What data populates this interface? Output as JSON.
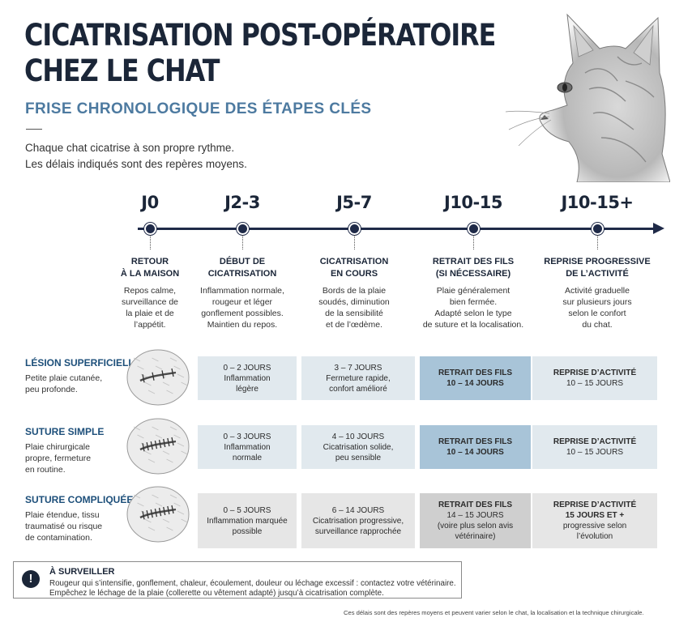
{
  "header": {
    "title_line1": "CICATRISATION POST-OPÉRATOIRE",
    "title_line2": "CHEZ LE CHAT",
    "subtitle": "FRISE CHRONOLOGIQUE DES ÉTAPES CLÉS",
    "intro_line1": "Chaque chat cicatrise à son propre rythme.",
    "intro_line2": "Les délais indiqués sont des repères moyens."
  },
  "timeline": [
    {
      "label": "J0",
      "title1": "RETOUR",
      "title2": "À LA MAISON",
      "desc": [
        "Repos calme,",
        "surveillance de",
        "la plaie et de",
        "l’appétit."
      ]
    },
    {
      "label": "J2-3",
      "title1": "DÉBUT DE",
      "title2": "CICATRISATION",
      "desc": [
        "Inflammation normale,",
        "rougeur et léger",
        "gonflement possibles.",
        "Maintien du repos."
      ]
    },
    {
      "label": "J5-7",
      "title1": "CICATRISATION",
      "title2": "EN COURS",
      "desc": [
        "Bords de la plaie",
        "soudés, diminution",
        "de la sensibilité",
        "et de l’œdème."
      ]
    },
    {
      "label": "J10-15",
      "title1": "RETRAIT DES FILS",
      "title2": "(SI NÉCESSAIRE)",
      "desc": [
        "Plaie généralement",
        "bien fermée.",
        "Adapté selon le type",
        "de suture et la localisation."
      ]
    },
    {
      "label": "J10-15+",
      "title1": "REPRISE PROGRESSIVE",
      "title2": "DE L’ACTIVITÉ",
      "desc": [
        "Activité graduelle",
        "sur plusieurs jours",
        "selon le confort",
        "du chat."
      ]
    }
  ],
  "rows": [
    {
      "title": "LÉSION SUPERFICIELLE",
      "desc": [
        "Petite plaie cutanée,",
        "peu profonde."
      ],
      "cells": [
        {
          "lines": [
            "0 – 2 JOURS",
            "Inflammation",
            "légère"
          ]
        },
        {
          "lines": [
            "3 – 7 JOURS",
            "Fermeture rapide,",
            "confort amélioré"
          ]
        },
        {
          "lines": [
            "RETRAIT DES FILS",
            "10 – 14 JOURS"
          ]
        },
        {
          "lines": [
            "REPRISE D’ACTIVITÉ",
            "10 – 15 JOURS"
          ]
        }
      ]
    },
    {
      "title": "SUTURE SIMPLE",
      "desc": [
        "Plaie chirurgicale",
        "propre, fermeture",
        "en routine."
      ],
      "cells": [
        {
          "lines": [
            "0 – 3 JOURS",
            "Inflammation",
            "normale"
          ]
        },
        {
          "lines": [
            "4 – 10 JOURS",
            "Cicatrisation solide,",
            "peu sensible"
          ]
        },
        {
          "lines": [
            "RETRAIT DES FILS",
            "10 – 14 JOURS"
          ]
        },
        {
          "lines": [
            "REPRISE D’ACTIVITÉ",
            "10 – 15 JOURS"
          ]
        }
      ]
    },
    {
      "title": "SUTURE COMPLIQUÉE",
      "desc": [
        "Plaie étendue, tissu",
        "traumatisé ou risque",
        "de contamination."
      ],
      "cells": [
        {
          "lines": [
            "0 – 5 JOURS",
            "Inflammation marquée",
            "possible"
          ]
        },
        {
          "lines": [
            "6 – 14 JOURS",
            "Cicatrisation progressive,",
            "surveillance rapprochée"
          ]
        },
        {
          "lines": [
            "RETRAIT DES FILS",
            "14 – 15 JOURS",
            "(voire plus selon avis",
            "vétérinaire)"
          ]
        },
        {
          "lines": [
            "REPRISE D’ACTIVITÉ",
            "15 JOURS ET +",
            "progressive selon",
            "l’évolution"
          ]
        }
      ]
    }
  ],
  "alert": {
    "icon": "!",
    "title": "À SURVEILLER",
    "line1": "Rougeur qui s’intensifie, gonflement, chaleur, écoulement, douleur ou léchage excessif : contactez votre vétérinaire.",
    "line2": "Empêchez le léchage de la plaie (collerette ou vêtement adapté) jusqu’à cicatrisation complète."
  },
  "footnote": "Ces délais sont des repères moyens et peuvent varier selon le chat, la localisation et la technique chirurgicale.",
  "colors": {
    "navy": "#1b2638",
    "accent_blue": "#4d7aa0",
    "cell_light": "#e1e9ee",
    "cell_blue": "#a8c4d8",
    "cell_gray": "#cfcfcf"
  },
  "icons": {
    "cat": "cat-portrait-illustration",
    "wound": "wound-closeup-icon",
    "alert": "exclamation-icon"
  }
}
